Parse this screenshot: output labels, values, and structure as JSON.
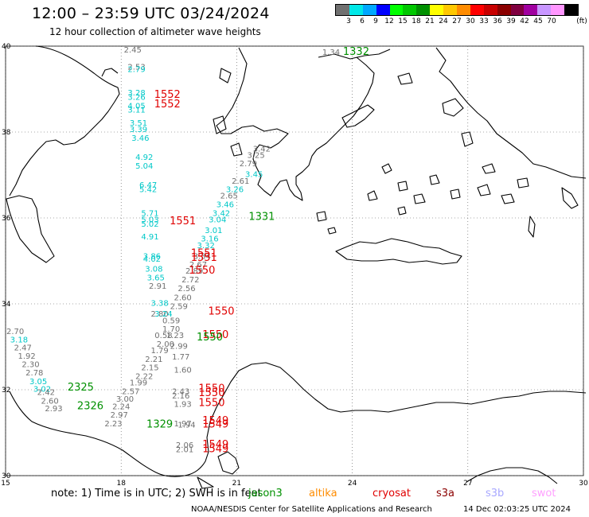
{
  "header": {
    "title": "12:00 – 23:59 UTC 03/24/2024",
    "subtitle": "12 hour collection of altimeter wave heights"
  },
  "colorbar": {
    "colors": [
      "#707070",
      "#00e8e8",
      "#00a8ff",
      "#0000ff",
      "#00ff00",
      "#00c800",
      "#009000",
      "#ffff00",
      "#ffc800",
      "#ff8c00",
      "#ff0000",
      "#c80000",
      "#8b0000",
      "#800040",
      "#a000a0",
      "#c896ff",
      "#ff96ff",
      "#000000"
    ],
    "labels": [
      "3",
      "6",
      "9",
      "12",
      "15",
      "18",
      "21",
      "24",
      "27",
      "30",
      "33",
      "36",
      "39",
      "42",
      "45",
      "70"
    ],
    "unit": "(ft)"
  },
  "axes": {
    "lat_labels": [
      "40",
      "38",
      "36",
      "34",
      "32",
      "30"
    ],
    "lon_labels": [
      "15",
      "18",
      "21",
      "24",
      "27",
      "30"
    ]
  },
  "observations": [
    {
      "text": "2.45",
      "color": "#707070",
      "lon": 18.3,
      "lat": 39.85
    },
    {
      "text": "2.53",
      "color": "#707070",
      "lon": 18.4,
      "lat": 39.45
    },
    {
      "text": "2.79",
      "color": "#00c8c8",
      "lon": 18.4,
      "lat": 39.4
    },
    {
      "text": "3.28",
      "color": "#00c8c8",
      "lon": 18.4,
      "lat": 38.85
    },
    {
      "text": "3.26",
      "color": "#00c8c8",
      "lon": 18.4,
      "lat": 38.75
    },
    {
      "text": "4.05",
      "color": "#00c8c8",
      "lon": 18.4,
      "lat": 38.55
    },
    {
      "text": "3.11",
      "color": "#00c8c8",
      "lon": 18.4,
      "lat": 38.45
    },
    {
      "text": "3.51",
      "color": "#00c8c8",
      "lon": 18.45,
      "lat": 38.15
    },
    {
      "text": "3.39",
      "color": "#00c8c8",
      "lon": 18.45,
      "lat": 38.0
    },
    {
      "text": "3.46",
      "color": "#00c8c8",
      "lon": 18.5,
      "lat": 37.8
    },
    {
      "text": "4.92",
      "color": "#00c8c8",
      "lon": 18.6,
      "lat": 37.35
    },
    {
      "text": "5.04",
      "color": "#00c8c8",
      "lon": 18.6,
      "lat": 37.15
    },
    {
      "text": "6.47",
      "color": "#00c8c8",
      "lon": 18.7,
      "lat": 36.7
    },
    {
      "text": "5.42",
      "color": "#00c8c8",
      "lon": 18.7,
      "lat": 36.6
    },
    {
      "text": "5.71",
      "color": "#00c8c8",
      "lon": 18.75,
      "lat": 36.05
    },
    {
      "text": "5.03",
      "color": "#00c8c8",
      "lon": 18.75,
      "lat": 35.9
    },
    {
      "text": "5.02",
      "color": "#00c8c8",
      "lon": 18.75,
      "lat": 35.8
    },
    {
      "text": "4.91",
      "color": "#00c8c8",
      "lon": 18.75,
      "lat": 35.5
    },
    {
      "text": "3.86",
      "color": "#00c8c8",
      "lon": 18.8,
      "lat": 35.05
    },
    {
      "text": "4.02",
      "color": "#00c8c8",
      "lon": 18.8,
      "lat": 34.98
    },
    {
      "text": "3.08",
      "color": "#00c8c8",
      "lon": 18.85,
      "lat": 34.75
    },
    {
      "text": "3.65",
      "color": "#00c8c8",
      "lon": 18.9,
      "lat": 34.55
    },
    {
      "text": "2.91",
      "color": "#707070",
      "lon": 18.95,
      "lat": 34.35
    },
    {
      "text": "3.38",
      "color": "#00c8c8",
      "lon": 19.0,
      "lat": 33.95
    },
    {
      "text": "2.80",
      "color": "#707070",
      "lon": 19.0,
      "lat": 33.7
    },
    {
      "text": "3.24",
      "color": "#00c8c8",
      "lon": 19.1,
      "lat": 33.7
    },
    {
      "text": "0.59",
      "color": "#707070",
      "lon": 19.3,
      "lat": 33.55
    },
    {
      "text": "1.70",
      "color": "#707070",
      "lon": 19.3,
      "lat": 33.35
    },
    {
      "text": "0.58",
      "color": "#707070",
      "lon": 19.1,
      "lat": 33.2
    },
    {
      "text": "1.23",
      "color": "#707070",
      "lon": 19.4,
      "lat": 33.2
    },
    {
      "text": "2.00",
      "color": "#707070",
      "lon": 19.15,
      "lat": 33.0
    },
    {
      "text": "1.79",
      "color": "#707070",
      "lon": 19.0,
      "lat": 32.85
    },
    {
      "text": "2.21",
      "color": "#707070",
      "lon": 18.85,
      "lat": 32.65
    },
    {
      "text": "2.15",
      "color": "#707070",
      "lon": 18.75,
      "lat": 32.45
    },
    {
      "text": "2.22",
      "color": "#707070",
      "lon": 18.6,
      "lat": 32.25
    },
    {
      "text": "1.99",
      "color": "#707070",
      "lon": 18.45,
      "lat": 32.1
    },
    {
      "text": "2.57",
      "color": "#707070",
      "lon": 18.25,
      "lat": 31.9
    },
    {
      "text": "3.00",
      "color": "#707070",
      "lon": 18.1,
      "lat": 31.72
    },
    {
      "text": "2.24",
      "color": "#707070",
      "lon": 18.0,
      "lat": 31.55
    },
    {
      "text": "2.97",
      "color": "#707070",
      "lon": 17.95,
      "lat": 31.35
    },
    {
      "text": "2.23",
      "color": "#707070",
      "lon": 17.8,
      "lat": 31.15
    },
    {
      "text": "2.99",
      "color": "#707070",
      "lon": 19.5,
      "lat": 32.95
    },
    {
      "text": "1.77",
      "color": "#707070",
      "lon": 19.55,
      "lat": 32.7
    },
    {
      "text": "1.60",
      "color": "#707070",
      "lon": 19.6,
      "lat": 32.4
    },
    {
      "text": "2.43",
      "color": "#707070",
      "lon": 19.55,
      "lat": 31.9
    },
    {
      "text": "2.16",
      "color": "#707070",
      "lon": 19.55,
      "lat": 31.8
    },
    {
      "text": "1.93",
      "color": "#707070",
      "lon": 19.6,
      "lat": 31.6
    },
    {
      "text": "1.97",
      "color": "#707070",
      "lon": 19.6,
      "lat": 31.15
    },
    {
      "text": "1.94",
      "color": "#707070",
      "lon": 19.7,
      "lat": 31.12
    },
    {
      "text": "2.06",
      "color": "#707070",
      "lon": 19.65,
      "lat": 30.65
    },
    {
      "text": "2.01",
      "color": "#707070",
      "lon": 19.65,
      "lat": 30.55
    },
    {
      "text": "3.42",
      "color": "#707070",
      "lon": 21.65,
      "lat": 37.55
    },
    {
      "text": "3.25",
      "color": "#707070",
      "lon": 21.5,
      "lat": 37.4
    },
    {
      "text": "2.79",
      "color": "#707070",
      "lon": 21.3,
      "lat": 37.2
    },
    {
      "text": "3.45",
      "color": "#00c8c8",
      "lon": 21.45,
      "lat": 36.95
    },
    {
      "text": "2.61",
      "color": "#707070",
      "lon": 21.1,
      "lat": 36.8
    },
    {
      "text": "3.26",
      "color": "#00c8c8",
      "lon": 20.95,
      "lat": 36.6
    },
    {
      "text": "2.65",
      "color": "#707070",
      "lon": 20.8,
      "lat": 36.45
    },
    {
      "text": "3.46",
      "color": "#00c8c8",
      "lon": 20.7,
      "lat": 36.25
    },
    {
      "text": "3.42",
      "color": "#00c8c8",
      "lon": 20.6,
      "lat": 36.05
    },
    {
      "text": "3.04",
      "color": "#00c8c8",
      "lon": 20.5,
      "lat": 35.9
    },
    {
      "text": "3.01",
      "color": "#00c8c8",
      "lon": 20.4,
      "lat": 35.65
    },
    {
      "text": "3.16",
      "color": "#00c8c8",
      "lon": 20.3,
      "lat": 35.45
    },
    {
      "text": "3.32",
      "color": "#00c8c8",
      "lon": 20.2,
      "lat": 35.3
    },
    {
      "text": "3.34",
      "color": "#707070",
      "lon": 20.1,
      "lat": 35.05
    },
    {
      "text": "2.67",
      "color": "#707070",
      "lon": 20.0,
      "lat": 34.85
    },
    {
      "text": "2.89",
      "color": "#707070",
      "lon": 19.9,
      "lat": 34.7
    },
    {
      "text": "2.72",
      "color": "#707070",
      "lon": 19.8,
      "lat": 34.5
    },
    {
      "text": "2.56",
      "color": "#707070",
      "lon": 19.7,
      "lat": 34.3
    },
    {
      "text": "2.60",
      "color": "#707070",
      "lon": 19.6,
      "lat": 34.08
    },
    {
      "text": "2.59",
      "color": "#707070",
      "lon": 19.5,
      "lat": 33.88
    },
    {
      "text": "2.70",
      "color": "#707070",
      "lon": 15.25,
      "lat": 33.3
    },
    {
      "text": "3.18",
      "color": "#00c8c8",
      "lon": 15.35,
      "lat": 33.1
    },
    {
      "text": "2.47",
      "color": "#707070",
      "lon": 15.45,
      "lat": 32.92
    },
    {
      "text": "1.92",
      "color": "#707070",
      "lon": 15.55,
      "lat": 32.72
    },
    {
      "text": "2.30",
      "color": "#707070",
      "lon": 15.65,
      "lat": 32.53
    },
    {
      "text": "2.78",
      "color": "#707070",
      "lon": 15.75,
      "lat": 32.33
    },
    {
      "text": "3.05",
      "color": "#00c8c8",
      "lon": 15.85,
      "lat": 32.13
    },
    {
      "text": "3.02",
      "color": "#00c8c8",
      "lon": 15.95,
      "lat": 31.95
    },
    {
      "text": "2.42",
      "color": "#707070",
      "lon": 16.05,
      "lat": 31.88
    },
    {
      "text": "2.60",
      "color": "#707070",
      "lon": 16.15,
      "lat": 31.68
    },
    {
      "text": "2.93",
      "color": "#707070",
      "lon": 16.25,
      "lat": 31.5
    },
    {
      "text": "1.34",
      "color": "#707070",
      "lon": 23.45,
      "lat": 39.8
    }
  ],
  "satellite_marks": [
    {
      "text": "1552",
      "color": "#e00000",
      "lon": 19.2,
      "lat": 38.8
    },
    {
      "text": "1552",
      "color": "#e00000",
      "lon": 19.2,
      "lat": 38.57
    },
    {
      "text": "1551",
      "color": "#e00000",
      "lon": 19.6,
      "lat": 35.85
    },
    {
      "text": "1551",
      "color": "#e00000",
      "lon": 20.15,
      "lat": 35.1
    },
    {
      "text": "1551",
      "color": "#e00000",
      "lon": 20.15,
      "lat": 35.0
    },
    {
      "text": "1550",
      "color": "#e00000",
      "lon": 20.1,
      "lat": 34.7
    },
    {
      "text": "1550",
      "color": "#e00000",
      "lon": 20.6,
      "lat": 33.75
    },
    {
      "text": "1550",
      "color": "#e00000",
      "lon": 20.45,
      "lat": 33.2
    },
    {
      "text": "1550",
      "color": "#009000",
      "lon": 20.3,
      "lat": 33.15
    },
    {
      "text": "1550",
      "color": "#e00000",
      "lon": 20.35,
      "lat": 31.95
    },
    {
      "text": "1550",
      "color": "#e00000",
      "lon": 20.35,
      "lat": 31.85
    },
    {
      "text": "1550",
      "color": "#e00000",
      "lon": 20.35,
      "lat": 31.62
    },
    {
      "text": "1549",
      "color": "#e00000",
      "lon": 20.45,
      "lat": 31.2
    },
    {
      "text": "1549",
      "color": "#e00000",
      "lon": 20.45,
      "lat": 31.12
    },
    {
      "text": "1549",
      "color": "#e00000",
      "lon": 20.45,
      "lat": 30.65
    },
    {
      "text": "1549",
      "color": "#e00000",
      "lon": 20.45,
      "lat": 30.55
    },
    {
      "text": "1332",
      "color": "#009000",
      "lon": 24.1,
      "lat": 39.8
    },
    {
      "text": "1331",
      "color": "#009000",
      "lon": 21.65,
      "lat": 35.95
    },
    {
      "text": "1329",
      "color": "#009000",
      "lon": 19.0,
      "lat": 31.12
    },
    {
      "text": "2325",
      "color": "#009000",
      "lon": 16.95,
      "lat": 31.98
    },
    {
      "text": "2326",
      "color": "#009000",
      "lon": 17.2,
      "lat": 31.55
    }
  ],
  "notes": {
    "text": "note:  1) Time is in UTC;  2) SWH is in feet",
    "legend": [
      {
        "name": "jason3",
        "color": "#009000"
      },
      {
        "name": "altika",
        "color": "#ff8c00"
      },
      {
        "name": "cryosat",
        "color": "#e00000"
      },
      {
        "name": "s3a",
        "color": "#8b0000"
      },
      {
        "name": "s3b",
        "color": "#a8a8ff"
      },
      {
        "name": "swot",
        "color": "#ffa0ff"
      }
    ]
  },
  "footer": {
    "credit": "NOAA/NESDIS Center for Satellite Applications and Research",
    "timestamp": "14 Dec 02:03:25 UTC 2024"
  }
}
